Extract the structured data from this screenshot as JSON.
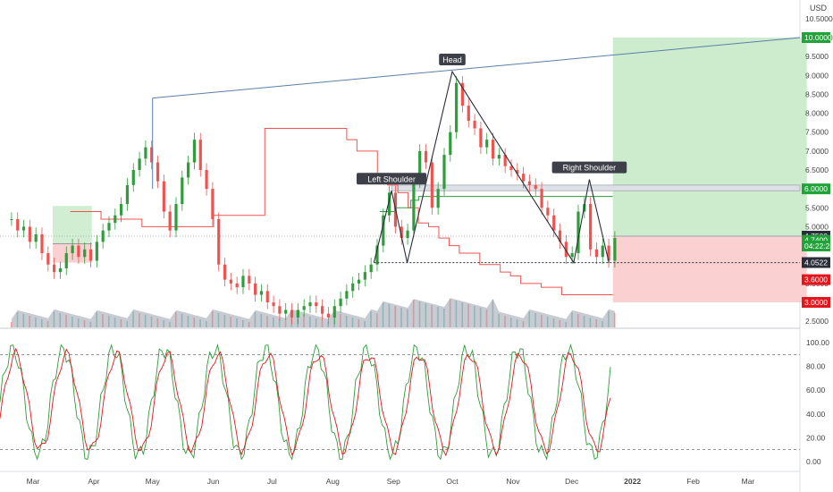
{
  "currency": "USD",
  "price_axis": {
    "ticks": [
      "10.5000",
      "10.0000",
      "9.5000",
      "9.0000",
      "8.5000",
      "8.0000",
      "7.5000",
      "7.0000",
      "6.5000",
      "6.0000",
      "5.5000",
      "5.0000",
      "4.5000",
      "4.0000",
      "3.5000",
      "3.0000",
      "2.5000"
    ],
    "tick_values": [
      10.5,
      10.0,
      9.5,
      9.0,
      8.5,
      8.0,
      7.5,
      7.0,
      6.5,
      6.0,
      5.5,
      5.0,
      4.5,
      4.0,
      3.5,
      3.0,
      2.5
    ],
    "badges": [
      {
        "label": "10.0000",
        "value": 10.0,
        "color": "#22a33a"
      },
      {
        "label": "6.0000",
        "value": 6.0,
        "color": "#22a33a"
      },
      {
        "label": "4.7500",
        "value": 4.75,
        "color": "#2a2e39"
      },
      {
        "label": "4.7400",
        "value": 4.64,
        "color": "#22a33a"
      },
      {
        "label": "04:22:28",
        "value": 4.49,
        "color": "#22a33a"
      },
      {
        "label": "4.0522",
        "value": 4.0522,
        "color": "#2a2e39"
      },
      {
        "label": "3.6000",
        "value": 3.6,
        "color": "#e4161b"
      },
      {
        "label": "3.0000",
        "value": 3.0,
        "color": "#e4161b"
      }
    ]
  },
  "osc_axis": {
    "ticks": [
      "100.00",
      "80.00",
      "60.00",
      "40.00",
      "20.00",
      "0.00"
    ],
    "tick_values": [
      100,
      80,
      60,
      40,
      20,
      0
    ]
  },
  "time_axis": {
    "labels": [
      "Mar",
      "Apr",
      "May",
      "Jun",
      "Jul",
      "Aug",
      "Sep",
      "Oct",
      "Nov",
      "Dec",
      "2022",
      "Feb",
      "Mar"
    ],
    "bold": [
      false,
      false,
      false,
      false,
      false,
      false,
      false,
      false,
      false,
      false,
      true,
      false,
      false
    ]
  },
  "annotations": {
    "head": "Head",
    "left_shoulder": "Left Shoulder",
    "right_shoulder": "Right Shoulder"
  },
  "colors": {
    "up": "#26a69a",
    "up_candle": "#2e9d3a",
    "down": "#ef5350",
    "target_zone": "#cdeccd",
    "stop_zone": "#fbd0d0",
    "trend_line": "#5a7fa8",
    "osc_k": "#2e9d3a",
    "osc_d": "#e4161b"
  },
  "chart_data": {
    "type": "candlestick",
    "symbol_currency": "USD",
    "close_series": {
      "x_start": "2021-02-18",
      "x_end": "2021-12-23",
      "values": [
        5.2,
        4.9,
        5.0,
        4.6,
        4.8,
        4.3,
        4.0,
        3.8,
        3.9,
        4.3,
        4.5,
        4.2,
        4.4,
        4.1,
        4.6,
        4.9,
        5.1,
        5.3,
        5.6,
        6.1,
        6.5,
        6.8,
        7.1,
        6.7,
        6.2,
        5.4,
        4.9,
        5.6,
        6.3,
        6.7,
        7.3,
        6.5,
        6.0,
        5.2,
        4.0,
        3.6,
        3.5,
        3.4,
        3.7,
        3.5,
        3.2,
        3.3,
        3.0,
        2.9,
        2.7,
        2.8,
        2.6,
        2.8,
        2.9,
        3.0,
        2.9,
        2.7,
        2.6,
        2.9,
        3.1,
        3.3,
        3.5,
        3.6,
        3.8,
        4.0,
        4.5,
        5.3,
        5.9,
        5.0,
        4.7,
        4.9,
        6.2,
        7.0,
        6.7,
        5.5,
        6.0,
        6.9,
        7.5,
        8.8,
        8.2,
        7.8,
        7.6,
        7.1,
        7.3,
        6.8,
        6.9,
        6.6,
        6.5,
        6.4,
        6.2,
        6.1,
        6.0,
        5.5,
        5.3,
        4.9,
        4.6,
        4.2,
        4.3,
        5.4,
        5.6,
        4.4,
        4.2,
        4.5,
        4.1,
        4.7
      ]
    },
    "moving_stop": {
      "upper_break": [
        5.4,
        5.4,
        5.4,
        5.2,
        5.2,
        5.2,
        5.2,
        5.0,
        5.0,
        5.0,
        5.0,
        5.0,
        5.0,
        5.0,
        5.3,
        5.3,
        5.3,
        5.3,
        5.3,
        7.6,
        7.6,
        7.6,
        7.6,
        7.6,
        7.6,
        7.6,
        7.6,
        7.3,
        7.0,
        7.0,
        6.4,
        6.1,
        5.9,
        5.5,
        5.1,
        5.0,
        4.7,
        4.5,
        4.3,
        4.3,
        4.0,
        4.0,
        3.8,
        3.7,
        3.5,
        3.5,
        3.4,
        3.4,
        3.2,
        3.2,
        3.2,
        3.2,
        3.2
      ],
      "lower_break": [
        5.4,
        5.4,
        5.5,
        5.5,
        5.7,
        5.8,
        5.8,
        5.8,
        5.8,
        5.8,
        5.8,
        5.8,
        5.8,
        5.8,
        5.8,
        5.8,
        5.8,
        5.8,
        5.8,
        5.8,
        5.8,
        5.8,
        5.8,
        5.8,
        5.8,
        5.8,
        5.8,
        5.8,
        5.8,
        5.8
      ]
    },
    "pattern": {
      "type": "head-and-shoulders",
      "left_shoulder": {
        "date": "2021-08-31",
        "price": 5.95
      },
      "head": {
        "date": "2021-10-01",
        "price": 9.1
      },
      "right_shoulder": {
        "date": "2021-12-10",
        "price": 6.25
      },
      "neckline": 4.05
    },
    "trend_line": {
      "from": {
        "date": "2021-05-01",
        "price": 8.4
      },
      "to": {
        "date": "2022-03-31",
        "price": 10.0
      }
    },
    "positions": [
      {
        "side": "long",
        "entry": 4.75,
        "target": 10.0,
        "stop": 3.0,
        "start": "2021-12-22",
        "end": "2022-03-31",
        "entry_level_label": "4.7500"
      },
      {
        "side": "long",
        "entry": 4.55,
        "target": 5.55,
        "stop": 4.05,
        "start": "2021-03-11",
        "end": "2021-03-31"
      }
    ],
    "resistance_band": {
      "from": 5.95,
      "to": 6.1
    },
    "stochastic": {
      "levels": [
        90,
        10
      ],
      "ylim": [
        0,
        100
      ]
    },
    "ylim": [
      2.5,
      10.5
    ],
    "x_labels": [
      "Mar",
      "Apr",
      "May",
      "Jun",
      "Jul",
      "Aug",
      "Sep",
      "Oct",
      "Nov",
      "Dec",
      "2022",
      "Feb",
      "Mar"
    ]
  }
}
